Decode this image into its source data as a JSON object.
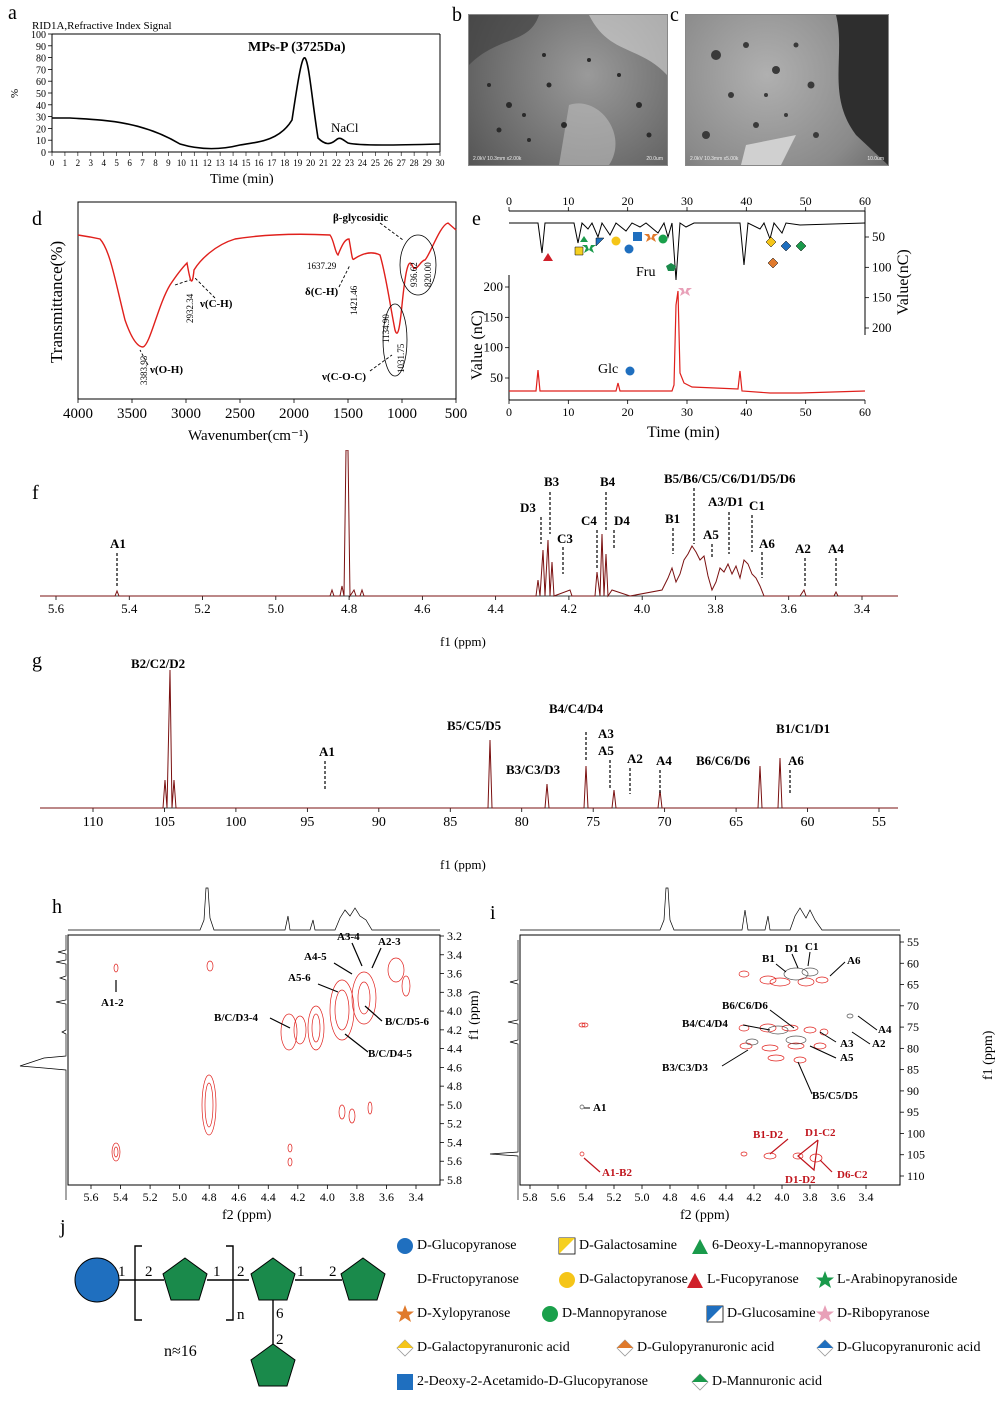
{
  "panel_labels": {
    "a": "a",
    "b": "b",
    "c": "c",
    "d": "d",
    "e": "e",
    "f": "f",
    "g": "g",
    "h": "h",
    "i": "i",
    "j": "j"
  },
  "panel_a": {
    "header": "RID1A,Refractive Index Signal",
    "title": "MPs-P (3725Da)",
    "peak_label": "NaCl",
    "ylabel": "%",
    "xlabel": "Time (min)",
    "yticks": [
      "100",
      "90",
      "80",
      "70",
      "60",
      "50",
      "40",
      "30",
      "20",
      "10",
      "0"
    ],
    "xticks": [
      "0",
      "1",
      "2",
      "3",
      "4",
      "5",
      "6",
      "7",
      "8",
      "9",
      "10",
      "11",
      "12",
      "13",
      "14",
      "15",
      "16",
      "17",
      "18",
      "19",
      "20",
      "21",
      "22",
      "23",
      "24",
      "25",
      "26",
      "27",
      "28",
      "29",
      "30"
    ]
  },
  "panel_b": {
    "info": "2.0kV 10.3mm x2.00k",
    "scale": "20.0um"
  },
  "panel_c": {
    "info": "2.0kV 10.3mm x5.00k",
    "scale": "10.0um"
  },
  "panel_d": {
    "ylabel": "Transmittance(%)",
    "xlabel": "Wavenumber(cm⁻¹)",
    "xticks": [
      "4000",
      "3500",
      "3000",
      "2500",
      "2000",
      "1500",
      "1000",
      "500"
    ],
    "peaks": [
      "3383.93",
      "2932.34",
      "1637.29",
      "1421.46",
      "1134.90",
      "1031.75",
      "936.62",
      "820.00"
    ],
    "annotations": [
      "ν(O-H)",
      "ν(C-H)",
      "δ(C-H)",
      "ν(C-O-C)",
      "β-glycosidic"
    ]
  },
  "panel_e": {
    "top_ticks": [
      "0",
      "10",
      "20",
      "30",
      "40",
      "50",
      "60"
    ],
    "bottom_ticks": [
      "0",
      "10",
      "20",
      "30",
      "40",
      "50",
      "60"
    ],
    "left_ticks": [
      "200",
      "150",
      "100",
      "50"
    ],
    "right_ticks": [
      "50",
      "100",
      "150",
      "200"
    ],
    "ylabel": "Value (nC)",
    "ylabel_right": "Value(nC)",
    "xlabel": "Time (min)",
    "labels": {
      "fru": "Fru",
      "glc": "Glc"
    }
  },
  "panel_f": {
    "xlabel": "f1 (ppm)",
    "xticks": [
      "5.6",
      "5.4",
      "5.2",
      "5.0",
      "4.8",
      "4.6",
      "4.4",
      "4.2",
      "4.0",
      "3.8",
      "3.6",
      "3.4"
    ],
    "annotations": [
      "A1",
      "D3",
      "B3",
      "C3",
      "C4",
      "B4",
      "D4",
      "B1",
      "B5/B6/C5/C6/D1/D5/D6",
      "A5",
      "A3/D1",
      "C1",
      "A6",
      "A2",
      "A4"
    ]
  },
  "panel_g": {
    "xlabel": "f1 (ppm)",
    "xticks": [
      "110",
      "105",
      "100",
      "95",
      "90",
      "85",
      "80",
      "75",
      "70",
      "65",
      "60",
      "55"
    ],
    "annotations": [
      "B2/C2/D2",
      "A1",
      "B5/C5/D5",
      "B3/C3/D3",
      "B4/C4/D4",
      "A3",
      "A5",
      "A2",
      "A4",
      "B6/C6/D6",
      "B1/C1/D1",
      "A6"
    ]
  },
  "panel_h": {
    "xlabel": "f2 (ppm)",
    "ylabel": "f1 (ppm)",
    "xticks": [
      "5.6",
      "5.4",
      "5.2",
      "5.0",
      "4.8",
      "4.6",
      "4.4",
      "4.2",
      "4.0",
      "3.8",
      "3.6",
      "3.4"
    ],
    "yticks": [
      "3.2",
      "3.4",
      "3.6",
      "3.8",
      "4.0",
      "4.2",
      "4.4",
      "4.6",
      "4.8",
      "5.0",
      "5.2",
      "5.4",
      "5.6",
      "5.8"
    ],
    "annotations": [
      "A1-2",
      "A3-4",
      "A2-3",
      "A4-5",
      "A5-6",
      "B/C/D3-4",
      "B/C/D5-6",
      "B/C/D4-5"
    ]
  },
  "panel_i": {
    "xlabel": "f2 (ppm)",
    "ylabel": "f1 (ppm)",
    "xticks": [
      "5.8",
      "5.6",
      "5.4",
      "5.2",
      "5.0",
      "4.8",
      "4.6",
      "4.4",
      "4.2",
      "4.0",
      "3.8",
      "3.6",
      "3.4"
    ],
    "yticks": [
      "55",
      "60",
      "65",
      "70",
      "75",
      "80",
      "85",
      "90",
      "95",
      "100",
      "105",
      "110"
    ],
    "annotations": [
      "D1",
      "C1",
      "B1",
      "A6",
      "B6/C6/D6",
      "A4",
      "B4/C4/D4",
      "A2",
      "A3",
      "A5",
      "B3/C3/D3",
      "B5/C5/D5",
      "A1"
    ],
    "red_annotations": [
      "B1-D2",
      "D1-C2",
      "D1-D2",
      "D6-C2",
      "A1-B2"
    ]
  },
  "panel_j": {
    "links": [
      "1",
      "2",
      "1",
      "2",
      "1",
      "2",
      "6",
      "2"
    ],
    "repeat": "n",
    "n_value": "n≈16"
  },
  "legend": [
    {
      "icon": "circle",
      "color": "#1f6fbf",
      "label": "D-Glucopyranose"
    },
    {
      "icon": "half-square",
      "color": "#f5d020",
      "label": "D-Galactosamine"
    },
    {
      "icon": "triangle",
      "color": "#1a9a4b",
      "label": "6-Deoxy-L-mannopyranose"
    },
    {
      "icon": "pentagon",
      "color": "#1a8a4b",
      "label": "D-Fructopyranose"
    },
    {
      "icon": "circle",
      "color": "#f5c518",
      "label": "D-Galactopyranose"
    },
    {
      "icon": "triangle",
      "color": "#d0202a",
      "label": "L-Fucopyranose"
    },
    {
      "icon": "star",
      "color": "#1a9a4b",
      "label": "L-Arabinopyranoside"
    },
    {
      "icon": "star",
      "color": "#e07a2c",
      "label": "D-Xylopyranose"
    },
    {
      "icon": "circle",
      "color": "#1aa04b",
      "label": "D-Mannopyranose"
    },
    {
      "icon": "half-square",
      "color": "#1f6fbf",
      "label": "D-Glucosamine"
    },
    {
      "icon": "star",
      "color": "#e8a0b8",
      "label": "D-Ribopyranose"
    },
    {
      "icon": "diamond",
      "color": "#f5c518",
      "label": "D-Galactopyranuronic acid"
    },
    {
      "icon": "diamond",
      "color": "#e07a2c",
      "label": "D-Gulopyranuronic acid"
    },
    {
      "icon": "diamond",
      "color": "#1f6fbf",
      "label": "D-Glucopyranuronic acid"
    },
    {
      "icon": "square",
      "color": "#1f6fbf",
      "label": "2-Deoxy-2-Acetamido-D-Glucopyranose"
    },
    {
      "icon": "diamond",
      "color": "#1a9a4b",
      "label": "D-Mannuronic acid"
    }
  ],
  "colors": {
    "red_trace": "#e0201c",
    "dark_red": "#7a1010",
    "grid": "#000"
  }
}
